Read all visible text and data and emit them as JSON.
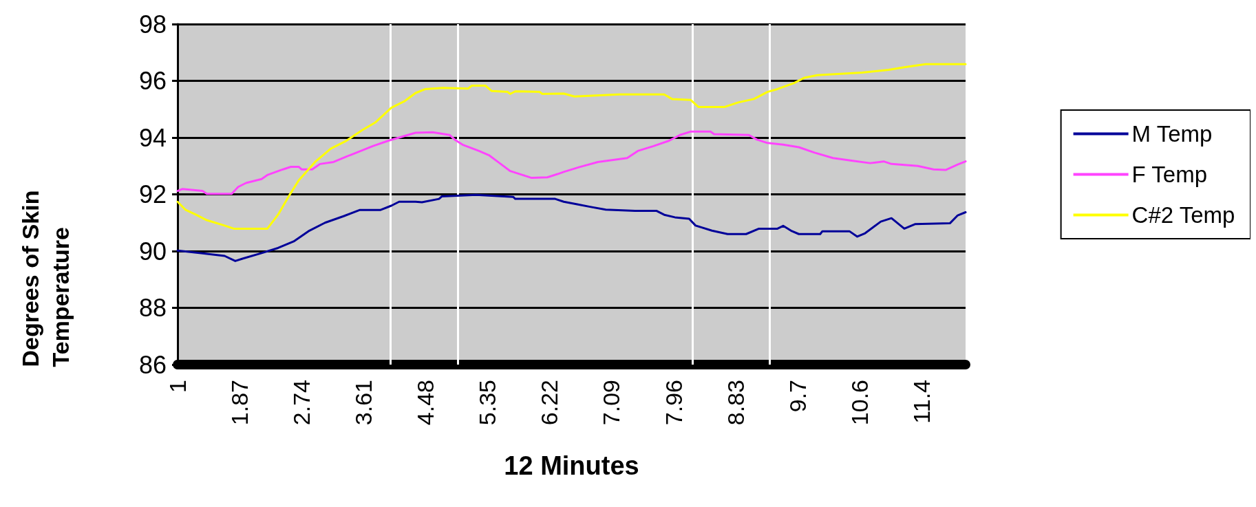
{
  "chart_data": {
    "type": "line",
    "xlabel": "12 Minutes",
    "ylabel": "Degrees of Skin Temperature",
    "xlim": [
      1,
      12.06
    ],
    "xticks": [
      1,
      1.87,
      2.74,
      3.61,
      4.48,
      5.35,
      6.22,
      7.09,
      7.96,
      8.83,
      9.7,
      {
        "value": 10.57,
        "label": "10.6"
      },
      {
        "value": 11.44,
        "label": "11.4"
      }
    ],
    "ylim": [
      86,
      98
    ],
    "yticks": [
      86,
      88,
      90,
      92,
      94,
      96,
      98
    ],
    "grid": "y",
    "legend": "right",
    "marker": "none",
    "line_style": "solid",
    "ref_lines": [
      {
        "axis": "x",
        "value": 3.99,
        "color": "#ffffff"
      },
      {
        "axis": "x",
        "value": 4.93,
        "color": "#ffffff"
      },
      {
        "axis": "x",
        "value": 8.23,
        "color": "#ffffff"
      },
      {
        "axis": "x",
        "value": 9.31,
        "color": "#ffffff"
      }
    ],
    "series": [
      {
        "name": "M Temp",
        "color": "#000099",
        "x": [
          1,
          1.33,
          1.66,
          1.81,
          1.92,
          2.18,
          2.41,
          2.63,
          2.85,
          3.07,
          3.33,
          3.56,
          3.85,
          4.0,
          4.11,
          4.34,
          4.43,
          4.67,
          4.71,
          5.19,
          5.71,
          5.74,
          6.3,
          6.42,
          6.61,
          6.79,
          7.01,
          7.42,
          7.72,
          7.83,
          7.98,
          8.18,
          8.27,
          8.5,
          8.72,
          8.98,
          9.16,
          9.42,
          9.5,
          9.61,
          9.72,
          10.02,
          10.05,
          10.43,
          10.54,
          10.65,
          10.87,
          11.02,
          11.2,
          11.35,
          11.84,
          11.95,
          12.06
        ],
        "values": [
          90.02,
          89.93,
          89.83,
          89.65,
          89.74,
          89.93,
          90.11,
          90.34,
          90.72,
          91.0,
          91.23,
          91.45,
          91.45,
          91.6,
          91.74,
          91.74,
          91.72,
          91.84,
          91.93,
          91.98,
          91.91,
          91.84,
          91.84,
          91.74,
          91.65,
          91.56,
          91.46,
          91.42,
          91.42,
          91.28,
          91.19,
          91.14,
          90.9,
          90.72,
          90.6,
          90.6,
          90.79,
          90.79,
          90.89,
          90.72,
          90.6,
          90.6,
          90.7,
          90.7,
          90.51,
          90.63,
          91.04,
          91.16,
          90.79,
          90.95,
          90.98,
          91.26,
          91.37
        ]
      },
      {
        "name": "F Temp",
        "color": "#ff44ff",
        "x": [
          1,
          1.07,
          1.35,
          1.41,
          1.76,
          1.85,
          1.96,
          2.18,
          2.26,
          2.48,
          2.59,
          2.7,
          2.74,
          2.89,
          3.0,
          3.19,
          3.37,
          3.56,
          3.74,
          3.96,
          4.19,
          4.34,
          4.58,
          4.82,
          4.89,
          5.0,
          5.23,
          5.37,
          5.52,
          5.67,
          5.82,
          5.97,
          6.19,
          6.34,
          6.42,
          6.64,
          6.9,
          7.31,
          7.46,
          7.68,
          7.9,
          8.05,
          8.2,
          8.48,
          8.53,
          9.02,
          9.13,
          9.28,
          9.5,
          9.72,
          9.94,
          10.2,
          10.46,
          10.72,
          10.91,
          11.02,
          11.39,
          11.61,
          11.78,
          11.95,
          12.06
        ],
        "values": [
          92.12,
          92.19,
          92.12,
          92.02,
          92.02,
          92.26,
          92.4,
          92.54,
          92.68,
          92.88,
          92.97,
          92.97,
          92.88,
          92.88,
          93.07,
          93.14,
          93.33,
          93.52,
          93.7,
          93.89,
          94.06,
          94.17,
          94.19,
          94.09,
          93.93,
          93.75,
          93.53,
          93.38,
          93.1,
          92.82,
          92.7,
          92.58,
          92.6,
          92.72,
          92.79,
          92.96,
          93.14,
          93.28,
          93.53,
          93.7,
          93.89,
          94.09,
          94.21,
          94.21,
          94.12,
          94.09,
          93.93,
          93.81,
          93.75,
          93.66,
          93.47,
          93.28,
          93.19,
          93.1,
          93.16,
          93.07,
          93.0,
          92.88,
          92.86,
          93.05,
          93.16
        ]
      },
      {
        "name": "C#2 Temp",
        "color": "#ffff00",
        "x": [
          1,
          1.11,
          1.26,
          1.41,
          1.66,
          1.79,
          2.26,
          2.41,
          2.56,
          2.7,
          2.93,
          3.15,
          3.37,
          3.59,
          3.78,
          4.0,
          4.19,
          4.34,
          4.48,
          4.72,
          5.08,
          5.13,
          5.32,
          5.41,
          5.63,
          5.67,
          5.74,
          6.08,
          6.12,
          6.42,
          6.57,
          7.2,
          7.83,
          7.94,
          8.2,
          8.31,
          8.68,
          8.87,
          9.09,
          9.28,
          9.42,
          9.65,
          9.8,
          9.98,
          10.61,
          10.98,
          11.2,
          11.5,
          12.06
        ],
        "values": [
          91.74,
          91.46,
          91.28,
          91.09,
          90.9,
          90.79,
          90.79,
          91.28,
          91.93,
          92.49,
          93.14,
          93.61,
          93.89,
          94.26,
          94.54,
          95.05,
          95.29,
          95.57,
          95.71,
          95.75,
          95.73,
          95.83,
          95.83,
          95.64,
          95.61,
          95.54,
          95.63,
          95.61,
          95.54,
          95.55,
          95.45,
          95.52,
          95.52,
          95.36,
          95.33,
          95.08,
          95.08,
          95.24,
          95.36,
          95.61,
          95.71,
          95.92,
          96.11,
          96.2,
          96.29,
          96.39,
          96.48,
          96.59,
          96.59
        ]
      }
    ]
  }
}
